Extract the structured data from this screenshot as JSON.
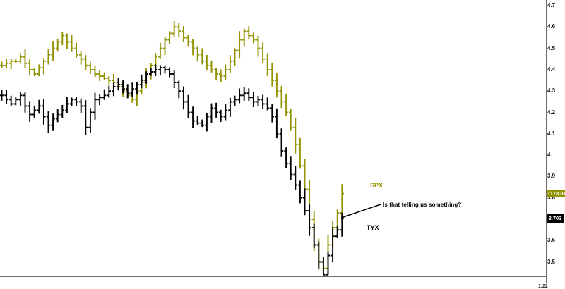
{
  "chart": {
    "series_labels": {
      "spx": "SPX",
      "tyx": "TYX"
    },
    "badges": {
      "spx": "1178.81",
      "tyx": "3.703"
    },
    "annotation_text": "Is that telling us something?",
    "axis": {
      "clipped_bottom_label": "1.22"
    },
    "colors": {
      "spx": "#939300",
      "tyx": "#000000",
      "axis_line": "#6e6e6e",
      "badge_text": "#ffffff",
      "background": "#ffffff"
    }
  },
  "chart_data": {
    "type": "bar",
    "subtype": "ohlc-overlay",
    "title": "",
    "annotation": "Is that telling us something?",
    "legend_position": "inline-right",
    "grid": false,
    "y_axis": {
      "side": "right",
      "min": 3.43,
      "max": 4.7,
      "tick_labels": [
        "4.7",
        "4.6",
        "4.5",
        "4.4",
        "4.3",
        "4.2",
        "4.1",
        "4",
        "3.9",
        "3.8",
        "3.6",
        "3.5"
      ]
    },
    "series": [
      {
        "name": "SPX",
        "color": "#939300",
        "last_price_label": "1178.81",
        "values_unit": "right-axis overlay units",
        "closes": [
          4.42,
          4.43,
          4.44,
          4.44,
          4.46,
          4.43,
          4.4,
          4.38,
          4.41,
          4.44,
          4.47,
          4.5,
          4.53,
          4.56,
          4.53,
          4.5,
          4.47,
          4.45,
          4.42,
          4.4,
          4.38,
          4.37,
          4.36,
          4.35,
          4.34,
          4.32,
          4.3,
          4.28,
          4.26,
          4.3,
          4.34,
          4.38,
          4.42,
          4.46,
          4.5,
          4.54,
          4.57,
          4.6,
          4.58,
          4.55,
          4.53,
          4.5,
          4.47,
          4.44,
          4.42,
          4.4,
          4.38,
          4.37,
          4.4,
          4.44,
          4.49,
          4.54,
          4.58,
          4.56,
          4.54,
          4.5,
          4.45,
          4.4,
          4.35,
          4.3,
          4.25,
          4.2,
          4.13,
          4.05,
          3.95,
          3.84,
          3.7,
          3.58,
          3.5,
          3.47,
          3.58,
          3.66,
          3.73,
          3.82
        ]
      },
      {
        "name": "TYX",
        "color": "#000000",
        "last_price_label": "3.703",
        "values_unit": "percent yield (right axis)",
        "closes": [
          4.28,
          4.26,
          4.24,
          4.26,
          4.28,
          4.23,
          4.19,
          4.21,
          4.23,
          4.18,
          4.14,
          4.17,
          4.19,
          4.21,
          4.24,
          4.26,
          4.25,
          4.23,
          4.13,
          4.2,
          4.26,
          4.27,
          4.28,
          4.3,
          4.32,
          4.33,
          4.31,
          4.29,
          4.31,
          4.33,
          4.35,
          4.38,
          4.39,
          4.4,
          4.41,
          4.4,
          4.38,
          4.34,
          4.3,
          4.25,
          4.2,
          4.16,
          4.15,
          4.14,
          4.18,
          4.22,
          4.2,
          4.18,
          4.21,
          4.25,
          4.26,
          4.28,
          4.29,
          4.27,
          4.25,
          4.26,
          4.24,
          4.22,
          4.18,
          4.1,
          4.02,
          3.96,
          3.91,
          3.86,
          3.8,
          3.74,
          3.66,
          3.58,
          3.5,
          3.44,
          3.53,
          3.62,
          3.65,
          3.703
        ]
      }
    ]
  }
}
